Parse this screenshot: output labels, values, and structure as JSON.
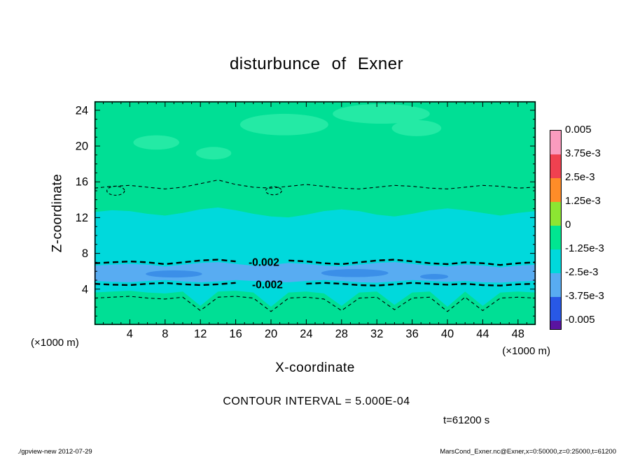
{
  "title": "disturbunce of Exner",
  "axes": {
    "x": {
      "label": "X-coordinate",
      "unit": "(×1000 m)"
    },
    "z": {
      "label": "Z-coordinate",
      "unit": "(×1000 m)"
    }
  },
  "annotations": {
    "contour_interval": "CONTOUR INTERVAL = 5.000E-04",
    "time": "t=61200 s"
  },
  "footer": {
    "left": "./gpview-new  2012-07-29",
    "right": "MarsCond_Exner.nc@Exner,x=0:50000,z=0:25000,t=61200"
  },
  "colorbar": {
    "labels": [
      "0.005",
      "3.75e-3",
      "2.5e-3",
      "1.25e-3",
      "0",
      "-1.25e-3",
      "-2.5e-3",
      "-3.75e-3",
      "-0.005"
    ],
    "colors": [
      "#FA9BBE",
      "#F04150",
      "#FF8C28",
      "#8CE632",
      "#00E691",
      "#00D9DC",
      "#58ACF2",
      "#2858E6"
    ],
    "undershoot_color": "#5A14A0"
  },
  "chart_data": {
    "type": "heatmap",
    "subtype": "filled-contour",
    "title": "disturbunce of Exner",
    "xlabel": "X-coordinate (×1000 m)",
    "ylabel": "Z-coordinate (×1000 m)",
    "xlim": [
      0,
      50
    ],
    "ylim": [
      0,
      25
    ],
    "x_ticks": [
      4,
      8,
      12,
      16,
      20,
      24,
      28,
      32,
      36,
      40,
      44,
      48
    ],
    "z_ticks": [
      4,
      8,
      12,
      16,
      20,
      24
    ],
    "contour_interval": 0.0005,
    "time_s": 61200,
    "x_samples": [
      0,
      2,
      4,
      6,
      8,
      10,
      12,
      14,
      16,
      18,
      20,
      22,
      24,
      26,
      28,
      30,
      32,
      34,
      36,
      38,
      40,
      42,
      44,
      46,
      48,
      50
    ],
    "boundaries": {
      "bGreenCyan": [
        12.6,
        12.8,
        12.7,
        12.4,
        12.2,
        12.5,
        12.9,
        13.1,
        12.8,
        12.4,
        12.1,
        12.0,
        12.3,
        12.7,
        12.9,
        12.7,
        12.3,
        12.1,
        12.4,
        12.8,
        13.0,
        12.8,
        12.5,
        12.2,
        12.5,
        12.7
      ],
      "bCyanBlue": [
        6.6,
        6.7,
        6.8,
        6.7,
        6.5,
        6.7,
        6.9,
        7.0,
        6.8,
        6.6,
        6.7,
        6.9,
        6.8,
        6.6,
        6.5,
        6.7,
        6.9,
        7.0,
        6.8,
        6.6,
        6.5,
        6.7,
        6.6,
        6.4,
        6.6,
        6.7
      ],
      "bBlueBottom": [
        4.9,
        4.8,
        4.75,
        4.9,
        5.0,
        4.85,
        4.75,
        4.85,
        5.0,
        4.9,
        4.8,
        4.75,
        4.9,
        5.0,
        4.9,
        4.75,
        4.7,
        4.85,
        5.0,
        4.9,
        4.8,
        4.9,
        4.75,
        4.7,
        4.85,
        4.9
      ],
      "bCyanGreen": [
        3.6,
        3.7,
        3.8,
        3.6,
        3.5,
        3.7,
        2.1,
        3.7,
        3.8,
        3.6,
        2.0,
        3.6,
        3.7,
        3.5,
        2.1,
        3.6,
        3.7,
        2.2,
        3.6,
        3.7,
        2.0,
        3.7,
        2.1,
        3.6,
        3.7,
        3.6
      ],
      "c1": [
        15.3,
        15.5,
        15.6,
        15.4,
        15.2,
        15.4,
        15.8,
        16.2,
        15.7,
        15.4,
        15.3,
        15.5,
        15.7,
        15.5,
        15.3,
        15.2,
        15.4,
        15.6,
        15.5,
        15.3,
        15.2,
        15.4,
        15.6,
        15.5,
        15.3,
        15.4
      ],
      "c2": [
        6.9,
        7.0,
        7.1,
        7.0,
        6.8,
        7.0,
        7.2,
        7.3,
        7.1,
        6.9,
        7.0,
        7.2,
        7.1,
        6.9,
        6.8,
        7.0,
        7.2,
        7.3,
        7.1,
        6.9,
        6.8,
        7.0,
        6.9,
        6.7,
        6.9,
        7.0
      ],
      "c3": [
        4.6,
        4.5,
        4.45,
        4.6,
        4.7,
        4.55,
        4.45,
        4.55,
        4.7,
        4.6,
        4.5,
        4.45,
        4.6,
        4.7,
        4.6,
        4.45,
        4.4,
        4.55,
        4.7,
        4.6,
        4.5,
        4.6,
        4.45,
        4.4,
        4.55,
        4.6
      ],
      "c4": [
        3.0,
        3.1,
        3.2,
        3.0,
        2.9,
        3.1,
        1.6,
        3.1,
        3.2,
        3.0,
        1.5,
        3.0,
        3.1,
        2.9,
        1.6,
        3.0,
        3.1,
        1.7,
        3.0,
        3.1,
        1.5,
        3.1,
        1.6,
        3.0,
        3.1,
        3.0
      ]
    },
    "bands": [
      {
        "color": "#00DF95",
        "top": 25,
        "bottom": "bGreenCyan"
      },
      {
        "color": "#00D9DC",
        "top": "bGreenCyan",
        "bottom": "bCyanBlue"
      },
      {
        "color": "#58ACF2",
        "top": "bCyanBlue",
        "bottom": "bBlueBottom"
      },
      {
        "color": "#00D9DC",
        "top": "bBlueBottom",
        "bottom": "bCyanGreen"
      },
      {
        "color": "#00DF95",
        "top": "bCyanGreen",
        "bottom": 0
      }
    ],
    "patches": [
      {
        "cx": 21.5,
        "cz": 22.4,
        "rx": 5.0,
        "rz": 1.2,
        "color": "#24EAA5"
      },
      {
        "cx": 32.5,
        "cz": 23.6,
        "rx": 5.5,
        "rz": 1.1,
        "color": "#24EAA5"
      },
      {
        "cx": 36.5,
        "cz": 22.0,
        "rx": 2.8,
        "rz": 0.9,
        "color": "#24EAA5"
      },
      {
        "cx": 7.0,
        "cz": 20.4,
        "rx": 2.6,
        "rz": 0.8,
        "color": "#24EAA5"
      },
      {
        "cx": 13.5,
        "cz": 19.2,
        "rx": 2.0,
        "rz": 0.7,
        "color": "#24EAA5"
      },
      {
        "cx": 9.0,
        "cz": 5.7,
        "rx": 3.2,
        "rz": 0.4,
        "color": "#3B8FE8"
      },
      {
        "cx": 29.5,
        "cz": 5.8,
        "rx": 3.8,
        "rz": 0.45,
        "color": "#3B8FE8"
      },
      {
        "cx": 38.5,
        "cz": 5.4,
        "rx": 1.6,
        "rz": 0.3,
        "color": "#3B8FE8"
      }
    ],
    "contours": [
      {
        "values": "c1",
        "level": -0.0015,
        "width": 1.1,
        "dash": "5 4"
      },
      {
        "values": "c2",
        "level": -0.002,
        "width": 2.4,
        "dash": "8 5",
        "gap": [
          16.6,
          21.8
        ],
        "label": "-0.002",
        "label_x": 19.2
      },
      {
        "values": "c3",
        "level": -0.002,
        "width": 2.4,
        "dash": "8 5",
        "gap": [
          17.0,
          22.2
        ],
        "label": "-0.002",
        "label_x": 19.6
      },
      {
        "values": "c4",
        "level": -0.0015,
        "width": 1.1,
        "dash": "5 4"
      }
    ],
    "loops": [
      {
        "cx": 2.4,
        "cz": 15.0,
        "rx": 1.0,
        "rz": 0.5,
        "level": -0.0015
      },
      {
        "cx": 20.3,
        "cz": 15.0,
        "rx": 0.9,
        "rz": 0.45,
        "level": -0.0015
      }
    ]
  }
}
